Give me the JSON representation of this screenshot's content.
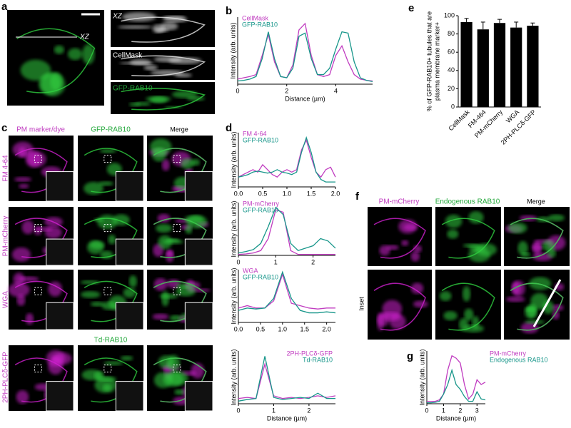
{
  "panel_letters": [
    "a",
    "b",
    "c",
    "d",
    "e",
    "f",
    "g"
  ],
  "panel_a": {
    "xz_line": "XZ",
    "xz_title": "XZ",
    "cellmask": "CellMask",
    "gfp": "GFP-RAB10"
  },
  "panel_c": {
    "columns": [
      "PM marker/dye",
      "GFP-RAB10",
      "Merge"
    ],
    "column_alt": "Td-RAB10",
    "rows": [
      "FM 4-64",
      "PM-mCherry",
      "WGA",
      "2PH-PLCδ-GFP"
    ]
  },
  "panel_f": {
    "columns": [
      "PM-mCherry",
      "Endogenous RAB10",
      "Merge"
    ],
    "row": "Inset"
  },
  "chart_data": [
    {
      "type": "line",
      "xlabel": "Distance (µm)",
      "ylabel": "Intensity (arb. units)",
      "legend": "upper left",
      "x": [
        0,
        0.25,
        0.5,
        0.75,
        1,
        1.25,
        1.5,
        1.75,
        2,
        2.25,
        2.5,
        2.75,
        3,
        3.25,
        3.5,
        3.75,
        4,
        4.25,
        4.5,
        4.75,
        5,
        5.25,
        5.5
      ],
      "xlim": [
        0,
        5.5
      ],
      "xticks": [
        0,
        2,
        4
      ],
      "ylim": [
        0,
        1.05
      ],
      "series": [
        {
          "name": "CellMask",
          "color": "#c03cc0",
          "values": [
            0.08,
            0.1,
            0.12,
            0.15,
            0.45,
            0.78,
            0.35,
            0.12,
            0.1,
            0.3,
            0.85,
            0.95,
            0.45,
            0.15,
            0.12,
            0.15,
            0.45,
            0.6,
            0.35,
            0.15,
            0.08,
            0.06,
            0.05
          ]
        },
        {
          "name": "GFP-RAB10",
          "color": "#17968a",
          "values": [
            0.05,
            0.06,
            0.08,
            0.12,
            0.4,
            0.82,
            0.4,
            0.12,
            0.1,
            0.25,
            0.75,
            0.8,
            0.4,
            0.15,
            0.15,
            0.25,
            0.55,
            0.82,
            0.8,
            0.35,
            0.1,
            0.06,
            0.04
          ]
        }
      ]
    },
    {
      "type": "line",
      "ylabel": "Intensity (arb. units)",
      "legend": "upper left",
      "x": [
        0,
        0.1,
        0.2,
        0.3,
        0.4,
        0.5,
        0.6,
        0.7,
        0.8,
        0.9,
        1,
        1.1,
        1.2,
        1.3,
        1.4,
        1.5,
        1.6,
        1.7,
        1.8,
        1.9,
        2
      ],
      "xlim": [
        0,
        2
      ],
      "xticks": [
        {
          "value": 0,
          "label": "0.0"
        },
        0.5,
        {
          "value": 1,
          "label": "1.0"
        },
        1.5,
        {
          "value": 2,
          "label": "2.0"
        }
      ],
      "ylim": [
        0,
        1.1
      ],
      "series": [
        {
          "name": "FM 4-64",
          "color": "#c03cc0",
          "values": [
            0.2,
            0.25,
            0.3,
            0.35,
            0.3,
            0.45,
            0.35,
            0.25,
            0.2,
            0.3,
            0.35,
            0.3,
            0.35,
            0.75,
            0.95,
            0.6,
            0.3,
            0.2,
            0.35,
            0.4,
            0.2
          ]
        },
        {
          "name": "GFP-RAB10",
          "color": "#17968a",
          "values": [
            0.2,
            0.22,
            0.25,
            0.3,
            0.32,
            0.3,
            0.28,
            0.3,
            0.35,
            0.3,
            0.28,
            0.25,
            0.3,
            0.7,
            1.0,
            0.7,
            0.3,
            0.15,
            0.1,
            0.1,
            0.1
          ]
        }
      ]
    },
    {
      "type": "line",
      "ylabel": "Intensity (arb. units)",
      "legend": "upper left",
      "x": [
        0,
        0.2,
        0.4,
        0.6,
        0.8,
        1,
        1.2,
        1.4,
        1.6,
        1.8,
        2,
        2.2,
        2.4,
        2.6
      ],
      "xlim": [
        0,
        2.6
      ],
      "xticks": [
        0,
        1,
        2
      ],
      "ylim": [
        0,
        1.1
      ],
      "series": [
        {
          "name": "PM-mCherry",
          "color": "#c03cc0",
          "values": [
            0.02,
            0.03,
            0.05,
            0.1,
            0.35,
            0.95,
            0.9,
            0.1,
            0.02,
            0.02,
            0.02,
            0.02,
            0.02,
            0.02
          ]
        },
        {
          "name": "GFP-RAB10",
          "color": "#17968a",
          "values": [
            0.05,
            0.08,
            0.12,
            0.25,
            0.6,
            1.0,
            0.85,
            0.25,
            0.1,
            0.15,
            0.2,
            0.35,
            0.3,
            0.15
          ]
        }
      ]
    },
    {
      "type": "line",
      "ylabel": "Intensity (arb. units)",
      "legend": "upper left",
      "x": [
        0,
        0.2,
        0.4,
        0.6,
        0.8,
        1,
        1.2,
        1.4,
        1.6,
        1.8,
        2,
        2.2
      ],
      "xlim": [
        0,
        2.2
      ],
      "xticks": [
        {
          "value": 0,
          "label": "0.0"
        },
        0.5,
        {
          "value": 1,
          "label": "1.0"
        },
        1.5,
        {
          "value": 2,
          "label": "2.0"
        }
      ],
      "ylim": [
        0,
        1.1
      ],
      "series": [
        {
          "name": "WGA",
          "color": "#c03cc0",
          "values": [
            0.3,
            0.35,
            0.3,
            0.3,
            0.45,
            1.0,
            0.4,
            0.35,
            0.3,
            0.28,
            0.3,
            0.3
          ]
        },
        {
          "name": "GFP-RAB10",
          "color": "#17968a",
          "values": [
            0.25,
            0.3,
            0.28,
            0.3,
            0.5,
            1.05,
            0.5,
            0.25,
            0.2,
            0.2,
            0.22,
            0.2
          ]
        }
      ]
    },
    {
      "type": "line",
      "xlabel": "Distance (µm)",
      "ylabel": "Intensity (arb. units)",
      "legend": "upper right",
      "x": [
        0,
        0.25,
        0.5,
        0.75,
        1,
        1.25,
        1.5,
        1.75,
        2,
        2.25,
        2.5,
        2.75
      ],
      "xlim": [
        0,
        2.75
      ],
      "xticks": [
        0,
        1,
        2
      ],
      "ylim": [
        0,
        1
      ],
      "series": [
        {
          "name": "2PH-PLCδ-GFP",
          "color": "#c03cc0",
          "values": [
            0.1,
            0.12,
            0.1,
            0.75,
            0.15,
            0.1,
            0.12,
            0.1,
            0.12,
            0.15,
            0.12,
            0.15
          ]
        },
        {
          "name": "Td-RAB10",
          "color": "#17968a",
          "values": [
            0.05,
            0.08,
            0.1,
            0.9,
            0.12,
            0.08,
            0.1,
            0.12,
            0.1,
            0.2,
            0.1,
            0.1
          ]
        }
      ]
    },
    {
      "type": "bar",
      "ylabel": [
        "% of GFP-RAB10+ tubules that are",
        "plasma membrane marker+"
      ],
      "categories": [
        "CellMask",
        "FM-464",
        "PM-mCherry",
        "WGA",
        "2PH-PLCδ-GFP"
      ],
      "values": [
        93,
        85,
        92,
        87,
        89
      ],
      "errors": [
        4,
        8,
        4,
        6,
        3
      ],
      "color": "#000000",
      "ylim": [
        0,
        100
      ],
      "yticks": [
        0,
        20,
        40,
        60,
        80,
        100
      ]
    },
    {
      "type": "line",
      "xlabel": "Distance (µm)",
      "ylabel": "Intensity (arb. units)",
      "legend": "right",
      "x": [
        0,
        0.25,
        0.5,
        0.75,
        1,
        1.25,
        1.5,
        1.75,
        2,
        2.25,
        2.5,
        2.75,
        3,
        3.25,
        3.5
      ],
      "xlim": [
        0,
        3.5
      ],
      "xticks": [
        0,
        1,
        2,
        3
      ],
      "ylim": [
        0,
        1.1
      ],
      "series": [
        {
          "name": "PM-mCherry",
          "color": "#c03cc0",
          "values": [
            0.05,
            0.05,
            0.05,
            0.08,
            0.2,
            0.7,
            1.0,
            0.95,
            0.85,
            0.4,
            0.1,
            0.2,
            0.5,
            0.4,
            0.45
          ]
        },
        {
          "name": "Endogenous RAB10",
          "color": "#17968a",
          "values": [
            0.02,
            0.02,
            0.03,
            0.05,
            0.2,
            0.4,
            0.7,
            0.4,
            0.3,
            0.15,
            0.05,
            0.05,
            0.25,
            0.1,
            0.08
          ]
        }
      ]
    }
  ]
}
